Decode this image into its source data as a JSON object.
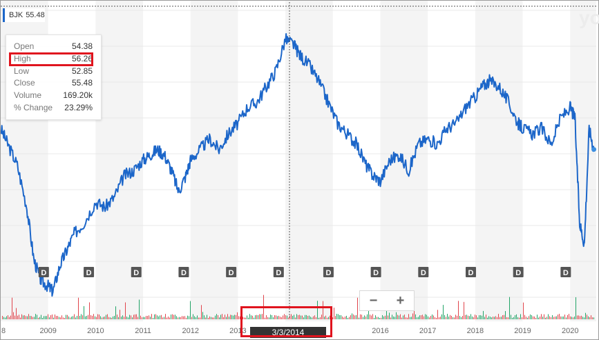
{
  "ticker": {
    "symbol": "BJK",
    "value": "55.48"
  },
  "watermark": "yo",
  "tooltip": {
    "rows": [
      {
        "label": "Open",
        "value": "54.38"
      },
      {
        "label": "High",
        "value": "56.26"
      },
      {
        "label": "Low",
        "value": "52.85"
      },
      {
        "label": "Close",
        "value": "55.48"
      },
      {
        "label": "Volume",
        "value": "169.20k"
      },
      {
        "label": "% Change",
        "value": "23.29%"
      }
    ]
  },
  "crosshair_date": "3/3/2014",
  "zoom": {
    "minus": "−",
    "plus": "+"
  },
  "dividend_marker_label": "D",
  "colors": {
    "line": "#1c66c9",
    "vol_up": "#21a366",
    "vol_down": "#e0444b",
    "highlight": "#e0141e"
  },
  "chart_data": {
    "type": "line",
    "title": "",
    "x_ticks": [
      "8",
      "2009",
      "2010",
      "2011",
      "2012",
      "2013",
      "2014",
      "",
      "2016",
      "2017",
      "2018",
      "2019",
      "2020"
    ],
    "series": [
      {
        "name": "",
        "x": [
          2008.0,
          2008.15,
          2008.35,
          2008.55,
          2008.7,
          2008.85,
          2009.0,
          2009.1,
          2009.25,
          2009.4,
          2009.55,
          2009.75,
          2010.0,
          2010.2,
          2010.4,
          2010.6,
          2010.8,
          2011.0,
          2011.15,
          2011.3,
          2011.45,
          2011.6,
          2011.75,
          2011.9,
          2012.0,
          2012.2,
          2012.4,
          2012.6,
          2012.8,
          2013.0,
          2013.2,
          2013.4,
          2013.6,
          2013.8,
          2014.0,
          2014.17,
          2014.3,
          2014.5,
          2014.7,
          2014.9,
          2015.1,
          2015.3,
          2015.5,
          2015.7,
          2015.85,
          2016.0,
          2016.2,
          2016.4,
          2016.6,
          2016.8,
          2017.0,
          2017.2,
          2017.4,
          2017.6,
          2017.8,
          2018.0,
          2018.15,
          2018.3,
          2018.5,
          2018.7,
          2018.9,
          2019.0,
          2019.2,
          2019.4,
          2019.6,
          2019.8,
          2020.0,
          2020.1,
          2020.2,
          2020.3,
          2020.4,
          2020.5
        ],
        "y": [
          40,
          37,
          33,
          25,
          15,
          11,
          10,
          9,
          14,
          17,
          20,
          22,
          26,
          25,
          27,
          31,
          32,
          34,
          35,
          36,
          35,
          32,
          28,
          31,
          34,
          36,
          38,
          36,
          39,
          41,
          44,
          45,
          48,
          51,
          57,
          56,
          54,
          52,
          49,
          45,
          41,
          39,
          37,
          33,
          31,
          30,
          34,
          35,
          32,
          37,
          38,
          37,
          40,
          41,
          44,
          46,
          48,
          49,
          48,
          45,
          41,
          40,
          39,
          40,
          37,
          42,
          44,
          42,
          22,
          18,
          40,
          36
        ]
      }
    ],
    "ylim": [
      5,
      58
    ],
    "volume": {
      "up_color": "#21a366",
      "down_color": "#e0444b"
    },
    "dividend_x": [
      2008.9,
      2009.85,
      2010.85,
      2011.85,
      2012.85,
      2013.85,
      2014.9,
      2015.9,
      2016.9,
      2017.9,
      2018.9,
      2019.9
    ],
    "grid": true,
    "legend": "none"
  }
}
